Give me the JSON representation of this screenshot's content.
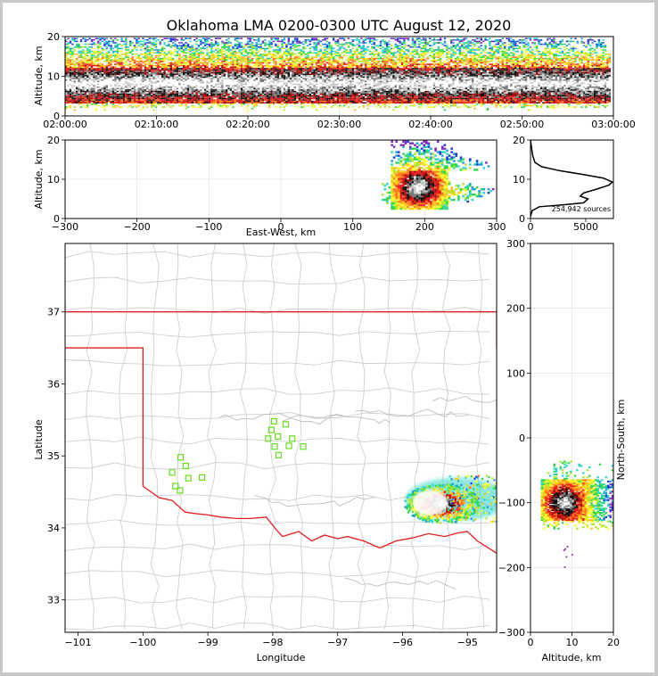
{
  "chart_data": [
    {
      "type": "heatmap",
      "panel": "altitude-time",
      "title": "Oklahoma LMA 0200-0300 UTC August 12, 2020",
      "ylabel": "Altitude, km",
      "ylim": [
        0,
        20
      ],
      "y_ticks": [
        "0",
        "10",
        "20"
      ],
      "x_ticks": [
        "02:00:00",
        "02:10:00",
        "02:20:00",
        "02:30:00",
        "02:40:00",
        "02:50:00",
        "03:00:00"
      ],
      "core_altitude_km": [
        3,
        12
      ],
      "sparse_altitude_km": [
        12,
        20
      ]
    },
    {
      "type": "heatmap",
      "panel": "altitude-east-west",
      "xlabel": "East-West, km",
      "ylabel": "Altitude, km",
      "xlim": [
        -300,
        300
      ],
      "ylim": [
        0,
        20
      ],
      "x_ticks": [
        "−300",
        "−200",
        "−100",
        "0",
        "100",
        "200",
        "300"
      ],
      "y_ticks": [
        "0",
        "10",
        "20"
      ],
      "cell_center_km": [
        190,
        8
      ],
      "cell_extent_x_km": [
        150,
        300
      ],
      "cell_top_km": 20
    },
    {
      "type": "line",
      "panel": "altitude-histogram",
      "annotation": "254,942 sources",
      "xlim": [
        0,
        7500
      ],
      "ylim": [
        0,
        20
      ],
      "x_ticks": [
        "0",
        "5000"
      ],
      "y_ticks": [
        "0",
        "10",
        "20"
      ],
      "profile": [
        {
          "count": 0,
          "alt": 0.5
        },
        {
          "count": 150,
          "alt": 2.0
        },
        {
          "count": 800,
          "alt": 3.0
        },
        {
          "count": 3000,
          "alt": 3.5
        },
        {
          "count": 4800,
          "alt": 4.0
        },
        {
          "count": 5200,
          "alt": 5.0
        },
        {
          "count": 4500,
          "alt": 5.7
        },
        {
          "count": 4800,
          "alt": 6.5
        },
        {
          "count": 6000,
          "alt": 7.5
        },
        {
          "count": 7100,
          "alt": 8.5
        },
        {
          "count": 7400,
          "alt": 9.3
        },
        {
          "count": 6600,
          "alt": 10.3
        },
        {
          "count": 4800,
          "alt": 11.2
        },
        {
          "count": 2600,
          "alt": 12.2
        },
        {
          "count": 1000,
          "alt": 13.2
        },
        {
          "count": 400,
          "alt": 14.3
        },
        {
          "count": 200,
          "alt": 16.0
        },
        {
          "count": 100,
          "alt": 18.0
        },
        {
          "count": 0,
          "alt": 20.0
        }
      ]
    },
    {
      "type": "scatter",
      "panel": "plan-view-map",
      "xlabel": "Longitude",
      "ylabel": "Latitude",
      "xlim": [
        -101.2,
        -94.55
      ],
      "ylim": [
        32.55,
        37.95
      ],
      "x_ticks": [
        "−101",
        "−100",
        "−99",
        "−98",
        "−97",
        "−96",
        "−95"
      ],
      "y_ticks": [
        "33",
        "34",
        "35",
        "36",
        "37"
      ],
      "storm_center": [
        -95.6,
        34.35
      ],
      "stations": [
        {
          "lon": -99.42,
          "lat": 34.98
        },
        {
          "lon": -99.34,
          "lat": 34.86
        },
        {
          "lon": -99.55,
          "lat": 34.77
        },
        {
          "lon": -99.3,
          "lat": 34.69
        },
        {
          "lon": -99.5,
          "lat": 34.58
        },
        {
          "lon": -99.43,
          "lat": 34.52
        },
        {
          "lon": -99.09,
          "lat": 34.7
        },
        {
          "lon": -97.98,
          "lat": 35.48
        },
        {
          "lon": -98.02,
          "lat": 35.36
        },
        {
          "lon": -97.8,
          "lat": 35.44
        },
        {
          "lon": -98.07,
          "lat": 35.24
        },
        {
          "lon": -97.92,
          "lat": 35.27
        },
        {
          "lon": -97.7,
          "lat": 35.24
        },
        {
          "lon": -97.97,
          "lat": 35.13
        },
        {
          "lon": -97.75,
          "lat": 35.14
        },
        {
          "lon": -97.53,
          "lat": 35.13
        },
        {
          "lon": -97.91,
          "lat": 35.01
        }
      ]
    },
    {
      "type": "heatmap",
      "panel": "north-south-altitude",
      "xlabel": "Altitude, km",
      "ylabel": "North-South, km",
      "xlim": [
        0,
        20
      ],
      "ylim": [
        -300,
        300
      ],
      "x_ticks": [
        "0",
        "10",
        "20"
      ],
      "y_ticks": [
        "−300",
        "−200",
        "−100",
        "0",
        "100",
        "200",
        "300"
      ],
      "cell_center_km": [
        8,
        -100
      ]
    }
  ]
}
